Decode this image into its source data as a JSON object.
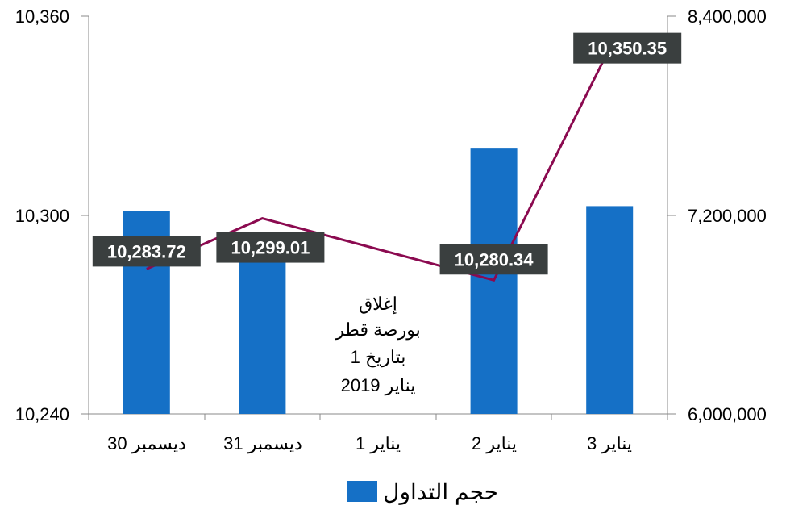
{
  "chart_data": {
    "type": "bar",
    "categories": [
      "30 ديسمبر",
      "31 ديسمبر",
      "1 يناير",
      "2 يناير",
      "3 يناير"
    ],
    "series": [
      {
        "name": "حجم التداول",
        "chart_type": "bar",
        "axis": "right",
        "color": "#1570c6",
        "values": [
          7222000,
          6960000,
          null,
          7601000,
          7254000
        ]
      },
      {
        "chart_type": "line",
        "axis": "left",
        "color": "#8b0a50",
        "values": [
          10283.72,
          10299.01,
          null,
          10280.34,
          10350.35
        ],
        "labels": [
          "10,283.72",
          "10,299.01",
          "",
          "10,280.34",
          "10,350.35"
        ]
      }
    ],
    "y_left": {
      "ylim": [
        10240,
        10360
      ],
      "ticks": [
        "10,240",
        "10,300",
        "10,360"
      ]
    },
    "y_right": {
      "ylim": [
        6000000,
        8400000
      ],
      "ticks": [
        "6,000,000",
        "7,200,000",
        "8,400,000"
      ]
    },
    "annotation": [
      "إغلاق",
      "بورصة قطر",
      "بتاريخ 1",
      "يناير 2019"
    ],
    "legend": {
      "position": "bottom",
      "label": "حجم التداول"
    },
    "label_box_color": "#3a3f3f",
    "grid": false
  }
}
